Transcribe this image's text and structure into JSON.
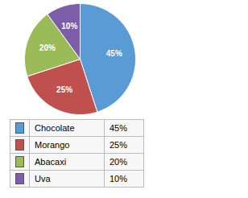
{
  "chart_data": {
    "type": "pie",
    "categories": [
      "Chocolate",
      "Morango",
      "Abacaxi",
      "Uva"
    ],
    "values": [
      45,
      25,
      20,
      10
    ],
    "value_labels": [
      "45%",
      "25%",
      "20%",
      "10%"
    ],
    "colors": [
      "#5b9bd5",
      "#c0504d",
      "#9bbb59",
      "#7b5ea7"
    ],
    "data_labels": true,
    "legend": "lower left"
  }
}
